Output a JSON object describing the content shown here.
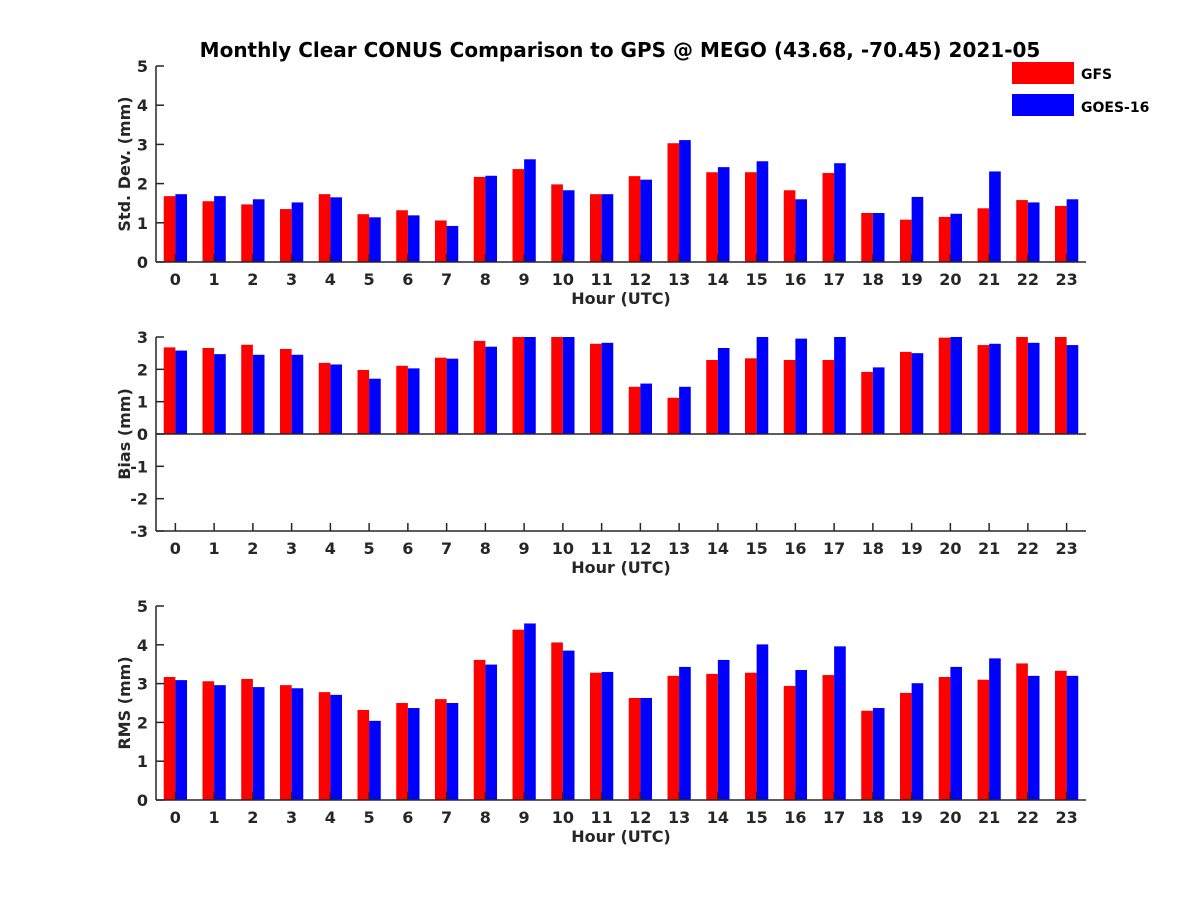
{
  "title": "Monthly Clear CONUS Comparison to GPS @ MEGO (43.68, -70.45) 2021-05",
  "legend": [
    {
      "name": "GFS",
      "color": "#ff0000"
    },
    {
      "name": "GOES-16",
      "color": "#0000ff"
    }
  ],
  "chart_data": [
    {
      "type": "bar",
      "xlabel": "Hour (UTC)",
      "ylabel": "Std. Dev. (mm)",
      "ylim": [
        0,
        5
      ],
      "yticks": [
        0,
        1,
        2,
        3,
        4,
        5
      ],
      "categories": [
        "0",
        "1",
        "2",
        "3",
        "4",
        "5",
        "6",
        "7",
        "8",
        "9",
        "10",
        "11",
        "12",
        "13",
        "14",
        "15",
        "16",
        "17",
        "18",
        "19",
        "20",
        "21",
        "22",
        "23"
      ],
      "series": [
        {
          "name": "GFS",
          "color": "#ff0000",
          "values": [
            1.68,
            1.55,
            1.47,
            1.35,
            1.73,
            1.22,
            1.32,
            1.06,
            2.17,
            2.37,
            1.98,
            1.73,
            2.19,
            3.03,
            2.29,
            2.29,
            1.83,
            2.27,
            1.25,
            1.08,
            1.15,
            1.37,
            1.58,
            1.43
          ]
        },
        {
          "name": "GOES-16",
          "color": "#0000ff",
          "values": [
            1.73,
            1.68,
            1.6,
            1.52,
            1.65,
            1.14,
            1.19,
            0.92,
            2.2,
            2.62,
            1.83,
            1.73,
            2.1,
            3.11,
            2.42,
            2.57,
            1.6,
            2.52,
            1.25,
            1.66,
            1.23,
            2.31,
            1.52,
            1.6
          ]
        }
      ]
    },
    {
      "type": "bar",
      "xlabel": "Hour (UTC)",
      "ylabel": "Bias (mm)",
      "ylim": [
        -3,
        3
      ],
      "yticks": [
        -3,
        -2,
        -1,
        0,
        1,
        2,
        3
      ],
      "categories": [
        "0",
        "1",
        "2",
        "3",
        "4",
        "5",
        "6",
        "7",
        "8",
        "9",
        "10",
        "11",
        "12",
        "13",
        "14",
        "15",
        "16",
        "17",
        "18",
        "19",
        "20",
        "21",
        "22",
        "23"
      ],
      "series": [
        {
          "name": "GFS",
          "color": "#ff0000",
          "values": [
            2.68,
            2.66,
            2.76,
            2.63,
            2.2,
            1.98,
            2.11,
            2.36,
            2.88,
            3.0,
            3.0,
            2.79,
            1.46,
            1.12,
            2.29,
            2.34,
            2.29,
            2.29,
            1.92,
            2.54,
            2.98,
            2.75,
            3.0,
            3.0
          ]
        },
        {
          "name": "GOES-16",
          "color": "#0000ff",
          "values": [
            2.58,
            2.47,
            2.45,
            2.45,
            2.15,
            1.71,
            2.03,
            2.33,
            2.7,
            3.0,
            3.0,
            2.82,
            1.56,
            1.46,
            2.66,
            3.0,
            2.95,
            3.0,
            2.06,
            2.5,
            3.0,
            2.79,
            2.82,
            2.75
          ]
        }
      ]
    },
    {
      "type": "bar",
      "xlabel": "Hour (UTC)",
      "ylabel": "RMS (mm)",
      "ylim": [
        0,
        5
      ],
      "yticks": [
        0,
        1,
        2,
        3,
        4,
        5
      ],
      "categories": [
        "0",
        "1",
        "2",
        "3",
        "4",
        "5",
        "6",
        "7",
        "8",
        "9",
        "10",
        "11",
        "12",
        "13",
        "14",
        "15",
        "16",
        "17",
        "18",
        "19",
        "20",
        "21",
        "22",
        "23"
      ],
      "series": [
        {
          "name": "GFS",
          "color": "#ff0000",
          "values": [
            3.17,
            3.06,
            3.12,
            2.96,
            2.78,
            2.32,
            2.5,
            2.6,
            3.61,
            4.39,
            4.06,
            3.28,
            2.63,
            3.2,
            3.25,
            3.28,
            2.94,
            3.22,
            2.3,
            2.76,
            3.17,
            3.1,
            3.52,
            3.33
          ]
        },
        {
          "name": "GOES-16",
          "color": "#0000ff",
          "values": [
            3.09,
            2.96,
            2.91,
            2.88,
            2.71,
            2.04,
            2.37,
            2.5,
            3.49,
            4.55,
            3.85,
            3.3,
            2.63,
            3.43,
            3.61,
            4.01,
            3.35,
            3.96,
            2.37,
            3.01,
            3.43,
            3.65,
            3.2,
            3.2
          ]
        }
      ]
    }
  ]
}
